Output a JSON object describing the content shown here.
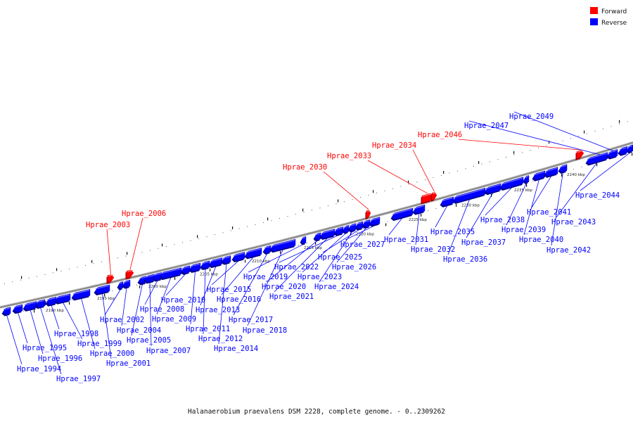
{
  "caption": "Halanaerobium praevalens DSM 2228, complete genome. - 0..2309262",
  "legend": [
    {
      "label": "Forward",
      "color": "#ff0000"
    },
    {
      "label": "Reverse",
      "color": "#0000ff"
    }
  ],
  "colors": {
    "forward": "#ff0000",
    "reverse": "#0000ff",
    "backbone": "#888888"
  },
  "ticks": [
    "2190 kbp",
    "2195 kbp",
    "2200 kbp",
    "2205 kbp",
    "2210 kbp",
    "2215 kbp",
    "2220 kbp",
    "2225 kbp",
    "2230 kbp",
    "2235 kbp",
    "2240 kbp"
  ],
  "genes": [
    {
      "name": "Hprae_1994",
      "strand": "reverse"
    },
    {
      "name": "Hprae_1995",
      "strand": "reverse"
    },
    {
      "name": "Hprae_1996",
      "strand": "reverse"
    },
    {
      "name": "Hprae_1997",
      "strand": "reverse"
    },
    {
      "name": "Hprae_1998",
      "strand": "reverse"
    },
    {
      "name": "Hprae_1999",
      "strand": "reverse"
    },
    {
      "name": "Hprae_2000",
      "strand": "reverse"
    },
    {
      "name": "Hprae_2001",
      "strand": "reverse"
    },
    {
      "name": "Hprae_2002",
      "strand": "reverse"
    },
    {
      "name": "Hprae_2003",
      "strand": "forward"
    },
    {
      "name": "Hprae_2004",
      "strand": "reverse"
    },
    {
      "name": "Hprae_2005",
      "strand": "reverse"
    },
    {
      "name": "Hprae_2006",
      "strand": "forward"
    },
    {
      "name": "Hprae_2007",
      "strand": "reverse"
    },
    {
      "name": "Hprae_2008",
      "strand": "reverse"
    },
    {
      "name": "Hprae_2009",
      "strand": "reverse"
    },
    {
      "name": "Hprae_2010",
      "strand": "reverse"
    },
    {
      "name": "Hprae_2011",
      "strand": "reverse"
    },
    {
      "name": "Hprae_2012",
      "strand": "reverse"
    },
    {
      "name": "Hprae_2013",
      "strand": "reverse"
    },
    {
      "name": "Hprae_2014",
      "strand": "reverse"
    },
    {
      "name": "Hprae_2015",
      "strand": "reverse"
    },
    {
      "name": "Hprae_2016",
      "strand": "reverse"
    },
    {
      "name": "Hprae_2017",
      "strand": "reverse"
    },
    {
      "name": "Hprae_2018",
      "strand": "reverse"
    },
    {
      "name": "Hprae_2019",
      "strand": "reverse"
    },
    {
      "name": "Hprae_2020",
      "strand": "reverse"
    },
    {
      "name": "Hprae_2021",
      "strand": "reverse"
    },
    {
      "name": "Hprae_2022",
      "strand": "reverse"
    },
    {
      "name": "Hprae_2023",
      "strand": "reverse"
    },
    {
      "name": "Hprae_2024",
      "strand": "reverse"
    },
    {
      "name": "Hprae_2025",
      "strand": "reverse"
    },
    {
      "name": "Hprae_2026",
      "strand": "reverse"
    },
    {
      "name": "Hprae_2027",
      "strand": "reverse"
    },
    {
      "name": "Hprae_2030",
      "strand": "forward"
    },
    {
      "name": "Hprae_2031",
      "strand": "reverse"
    },
    {
      "name": "Hprae_2032",
      "strand": "reverse"
    },
    {
      "name": "Hprae_2033",
      "strand": "forward"
    },
    {
      "name": "Hprae_2034",
      "strand": "forward"
    },
    {
      "name": "Hprae_2035",
      "strand": "reverse"
    },
    {
      "name": "Hprae_2036",
      "strand": "reverse"
    },
    {
      "name": "Hprae_2037",
      "strand": "reverse"
    },
    {
      "name": "Hprae_2038",
      "strand": "reverse"
    },
    {
      "name": "Hprae_2039",
      "strand": "reverse"
    },
    {
      "name": "Hprae_2040",
      "strand": "reverse"
    },
    {
      "name": "Hprae_2041",
      "strand": "reverse"
    },
    {
      "name": "Hprae_2042",
      "strand": "reverse"
    },
    {
      "name": "Hprae_2043",
      "strand": "reverse"
    },
    {
      "name": "Hprae_2044",
      "strand": "reverse"
    },
    {
      "name": "Hprae_2046",
      "strand": "forward"
    },
    {
      "name": "Hprae_2047",
      "strand": "reverse"
    },
    {
      "name": "Hprae_2049",
      "strand": "reverse"
    }
  ]
}
